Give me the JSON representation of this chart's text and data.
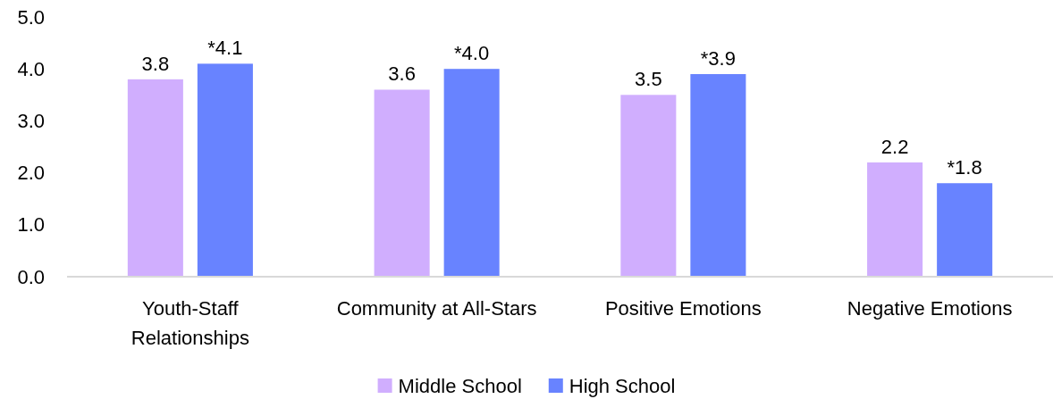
{
  "chart_data": {
    "type": "bar",
    "categories": [
      "Youth-Staff Relationships",
      "Community at All-Stars",
      "Positive Emotions",
      "Negative Emotions"
    ],
    "series": [
      {
        "name": "Middle School",
        "color": "#d0aefe",
        "values": [
          3.8,
          3.6,
          3.5,
          2.2
        ],
        "value_labels": [
          "3.8",
          "3.6",
          "3.5",
          "2.2"
        ]
      },
      {
        "name": "High School",
        "color": "#6883ff",
        "values": [
          4.1,
          4.0,
          3.9,
          1.8
        ],
        "value_labels": [
          "*4.1",
          "*4.0",
          "*3.9",
          "*1.8"
        ]
      }
    ],
    "ylim": [
      0,
      5
    ],
    "yticks": [
      {
        "value": 0,
        "label": "0.0"
      },
      {
        "value": 1,
        "label": "1.0"
      },
      {
        "value": 2,
        "label": "2.0"
      },
      {
        "value": 3,
        "label": "3.0"
      },
      {
        "value": 4,
        "label": "4.0"
      },
      {
        "value": 5,
        "label": "5.0"
      }
    ],
    "legend": "bottom"
  }
}
